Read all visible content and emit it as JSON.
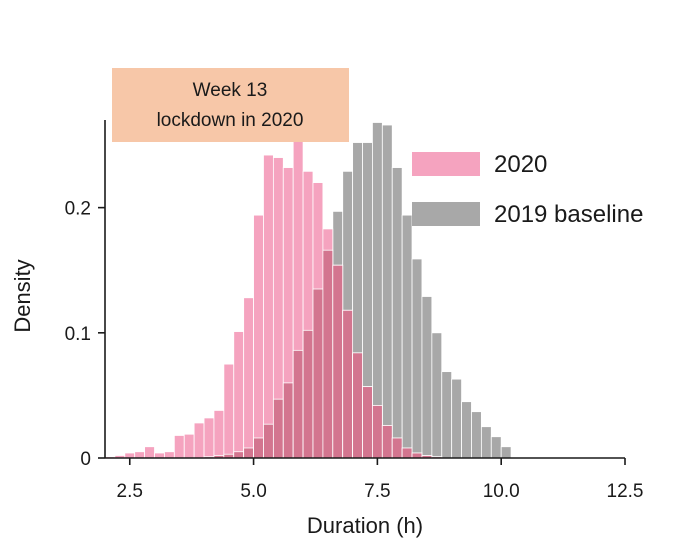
{
  "colors": {
    "series_2020": "#f5a3bf",
    "series_2019": "#a8a8a8",
    "overlap": "#d3758f",
    "banner_bg": "#f7c7a8",
    "axis": "#1a1a1a"
  },
  "banner": {
    "line1": "Week 13",
    "line2": "lockdown in 2020"
  },
  "chart_data": {
    "type": "bar",
    "title": "",
    "xlabel": "Duration (h)",
    "ylabel": "Density",
    "xlim": [
      2.0,
      12.5
    ],
    "ylim": [
      0,
      0.27
    ],
    "xticks": [
      2.5,
      5.0,
      7.5,
      10.0,
      12.5
    ],
    "xtick_labels": [
      "2.5",
      "5.0",
      "7.5",
      "10.0",
      "12.5"
    ],
    "yticks": [
      0,
      0.1,
      0.2
    ],
    "ytick_labels": [
      "0",
      "0.1",
      "0.2"
    ],
    "grid": false,
    "legend_position": "top-right",
    "bin_width": 0.2,
    "bin_starts": [
      2.0,
      2.2,
      2.4,
      2.6,
      2.8,
      3.0,
      3.2,
      3.4,
      3.6,
      3.8,
      4.0,
      4.2,
      4.4,
      4.6,
      4.8,
      5.0,
      5.2,
      5.4,
      5.6,
      5.8,
      6.0,
      6.2,
      6.4,
      6.6,
      6.8,
      7.0,
      7.2,
      7.4,
      7.6,
      7.8,
      8.0,
      8.2,
      8.4,
      8.6,
      8.8,
      9.0,
      9.2,
      9.4,
      9.6,
      9.8,
      10.0
    ],
    "series": [
      {
        "name": "2020",
        "values": [
          0.001,
          0.002,
          0.004,
          0.005,
          0.009,
          0.004,
          0.005,
          0.018,
          0.019,
          0.028,
          0.032,
          0.038,
          0.075,
          0.101,
          0.128,
          0.194,
          0.242,
          0.24,
          0.232,
          0.266,
          0.229,
          0.22,
          0.183,
          0.154,
          0.118,
          0.084,
          0.057,
          0.042,
          0.026,
          0.016,
          0.008,
          0.004,
          0.002,
          0.001,
          0,
          0,
          0,
          0,
          0,
          0,
          0
        ]
      },
      {
        "name": "2019 baseline",
        "values": [
          0,
          0,
          0,
          0,
          0,
          0,
          0,
          0,
          0,
          0,
          0.001,
          0.002,
          0.003,
          0.005,
          0.008,
          0.016,
          0.027,
          0.047,
          0.06,
          0.086,
          0.102,
          0.135,
          0.166,
          0.197,
          0.229,
          0.252,
          0.252,
          0.268,
          0.266,
          0.232,
          0.194,
          0.159,
          0.129,
          0.1,
          0.069,
          0.063,
          0.045,
          0.037,
          0.025,
          0.017,
          0.009
        ]
      }
    ]
  }
}
